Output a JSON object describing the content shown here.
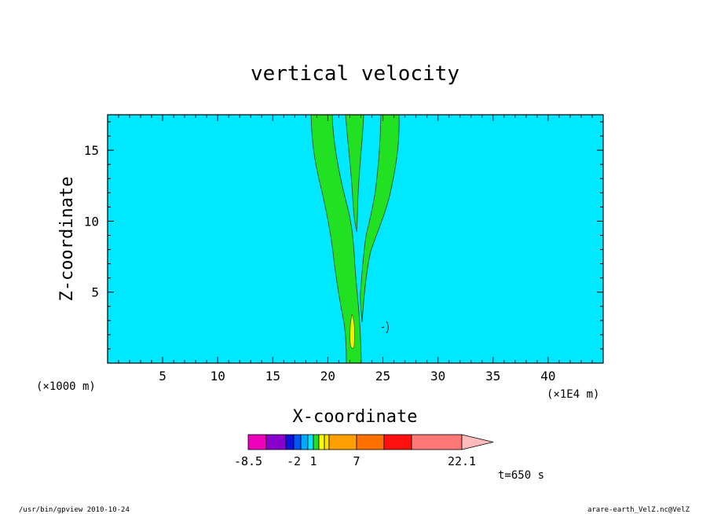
{
  "chart_data": {
    "type": "contour",
    "title": "vertical velocity",
    "xlabel": "X-coordinate",
    "ylabel": "Z-coordinate",
    "x_unit_left": "(×1000 m)",
    "x_unit_right": "(×1E4 m)",
    "xlim": [
      0,
      45
    ],
    "ylim": [
      0,
      17.5
    ],
    "x_ticks": [
      5,
      10,
      15,
      20,
      25,
      30,
      35,
      40
    ],
    "x_tick_labels": [
      "5",
      "10",
      "15",
      "20",
      "25",
      "30",
      "35",
      "40"
    ],
    "y_ticks": [
      5,
      10,
      15
    ],
    "y_tick_labels": [
      "5",
      "10",
      "15"
    ],
    "background_level_color": "#00e8ff",
    "contour_color": "#22e022",
    "updraft_core_color": "#f0f000",
    "time_label": "t=650 s",
    "colorbar": {
      "tick_labels": [
        "-8.5",
        "-2",
        "1",
        "7",
        "22.1"
      ],
      "colors": [
        "#ee00bb",
        "#8800cc",
        "#1010dd",
        "#0055ff",
        "#00aaff",
        "#00e8ff",
        "#22dd22",
        "#ffff00",
        "#ffe000",
        "#ffa000",
        "#ff7000",
        "#ff1010",
        "#ff7777",
        "#ffbbbb"
      ]
    }
  },
  "footer": {
    "left": "/usr/bin/gpview   2010-10-24",
    "right": "arare-earth_VelZ.nc@VelZ"
  }
}
